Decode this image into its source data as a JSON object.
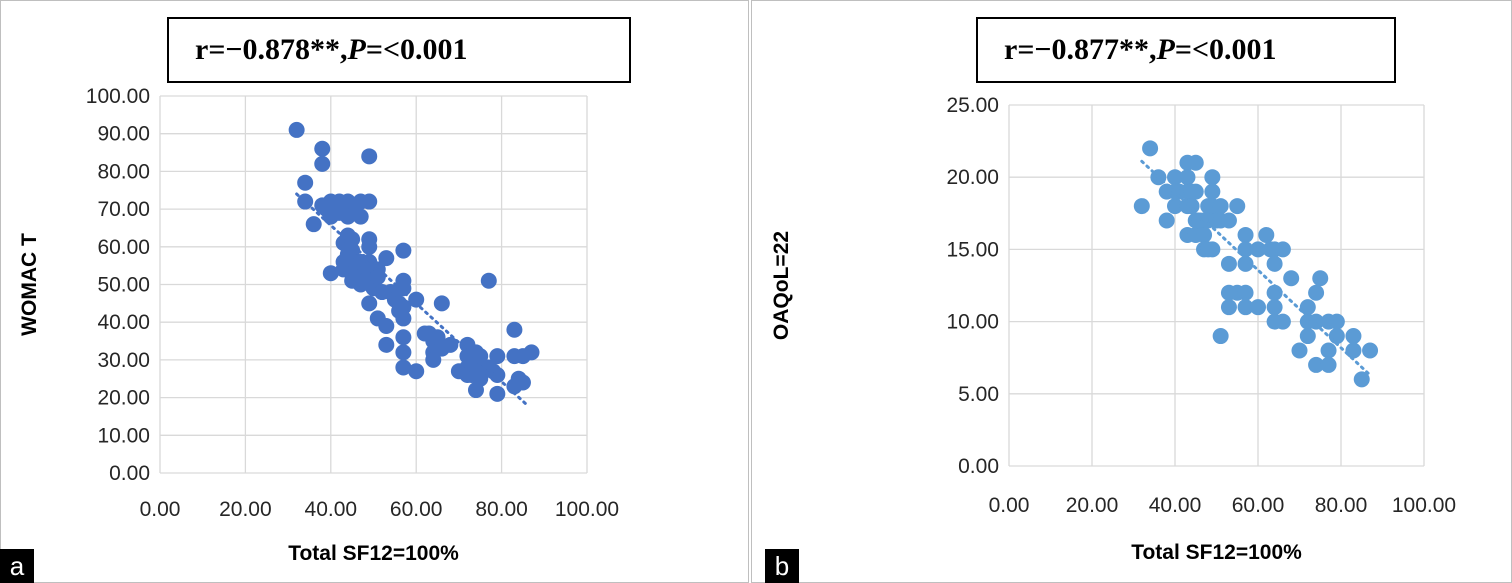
{
  "chart_data": [
    {
      "panel": "a",
      "type": "scatter",
      "annotation": {
        "prefix": "r=−0.878**, ",
        "p_symbol": "P",
        "suffix": "=<0.001"
      },
      "xlabel": "Total SF12=100%",
      "ylabel": "WOMAC T",
      "xlim": [
        0,
        100
      ],
      "ylim": [
        0,
        100
      ],
      "xticks": [
        "0.00",
        "20.00",
        "40.00",
        "60.00",
        "80.00",
        "100.00"
      ],
      "yticks": [
        "0.00",
        "10.00",
        "20.00",
        "30.00",
        "40.00",
        "50.00",
        "60.00",
        "70.00",
        "80.00",
        "90.00",
        "100.00"
      ],
      "grid": true,
      "color": "#4472c4",
      "trendline": {
        "x": [
          32,
          86
        ],
        "y": [
          74,
          18
        ],
        "style": "dotted"
      },
      "points": [
        [
          32,
          91
        ],
        [
          34,
          77
        ],
        [
          34,
          72
        ],
        [
          36,
          66
        ],
        [
          38,
          86
        ],
        [
          38,
          82
        ],
        [
          38,
          71
        ],
        [
          39,
          70
        ],
        [
          40,
          72
        ],
        [
          40,
          68
        ],
        [
          40,
          53
        ],
        [
          42,
          72
        ],
        [
          42,
          69
        ],
        [
          43,
          61
        ],
        [
          43,
          56
        ],
        [
          43,
          54
        ],
        [
          44,
          72
        ],
        [
          44,
          68
        ],
        [
          44,
          63
        ],
        [
          44,
          58
        ],
        [
          44,
          55
        ],
        [
          45,
          62
        ],
        [
          45,
          59
        ],
        [
          45,
          56
        ],
        [
          45,
          53
        ],
        [
          45,
          51
        ],
        [
          46,
          71
        ],
        [
          46,
          55
        ],
        [
          46,
          53
        ],
        [
          47,
          72
        ],
        [
          47,
          68
        ],
        [
          47,
          56
        ],
        [
          47,
          52
        ],
        [
          47,
          50
        ],
        [
          48,
          53
        ],
        [
          48,
          51
        ],
        [
          49,
          84
        ],
        [
          49,
          72
        ],
        [
          49,
          62
        ],
        [
          49,
          60
        ],
        [
          49,
          56
        ],
        [
          49,
          54
        ],
        [
          49,
          45
        ],
        [
          50,
          53
        ],
        [
          50,
          51
        ],
        [
          50,
          49
        ],
        [
          51,
          54
        ],
        [
          51,
          52
        ],
        [
          51,
          41
        ],
        [
          52,
          48
        ],
        [
          53,
          57
        ],
        [
          53,
          39
        ],
        [
          53,
          34
        ],
        [
          54,
          48
        ],
        [
          55,
          46
        ],
        [
          56,
          45
        ],
        [
          56,
          43
        ],
        [
          57,
          59
        ],
        [
          57,
          51
        ],
        [
          57,
          49
        ],
        [
          57,
          44
        ],
        [
          57,
          41
        ],
        [
          57,
          36
        ],
        [
          57,
          32
        ],
        [
          57,
          28
        ],
        [
          60,
          46
        ],
        [
          60,
          27
        ],
        [
          62,
          37
        ],
        [
          63,
          37
        ],
        [
          64,
          35
        ],
        [
          64,
          32
        ],
        [
          64,
          30
        ],
        [
          65,
          36
        ],
        [
          66,
          45
        ],
        [
          66,
          33
        ],
        [
          68,
          34
        ],
        [
          70,
          27
        ],
        [
          72,
          34
        ],
        [
          72,
          31
        ],
        [
          72,
          28
        ],
        [
          72,
          26
        ],
        [
          73,
          26
        ],
        [
          73,
          29
        ],
        [
          74,
          32
        ],
        [
          74,
          22
        ],
        [
          75,
          31
        ],
        [
          75,
          27
        ],
        [
          75,
          25
        ],
        [
          77,
          51
        ],
        [
          77,
          28
        ],
        [
          78,
          27
        ],
        [
          79,
          31
        ],
        [
          79,
          26
        ],
        [
          79,
          21
        ],
        [
          83,
          38
        ],
        [
          83,
          31
        ],
        [
          83,
          23
        ],
        [
          84,
          25
        ],
        [
          85,
          31
        ],
        [
          85,
          24
        ],
        [
          87,
          32
        ]
      ]
    },
    {
      "panel": "b",
      "type": "scatter",
      "annotation": {
        "prefix": "r=−0.877**, ",
        "p_symbol": "P",
        "suffix": "=<0.001"
      },
      "xlabel": "Total SF12=100%",
      "ylabel": "OAQoL=22",
      "xlim": [
        0,
        100
      ],
      "ylim": [
        0,
        25
      ],
      "xticks": [
        "0.00",
        "20.00",
        "40.00",
        "60.00",
        "80.00",
        "100.00"
      ],
      "yticks": [
        "0.00",
        "5.00",
        "10.00",
        "15.00",
        "20.00",
        "25.00"
      ],
      "grid": true,
      "color": "#5b9bd5",
      "trendline": {
        "x": [
          32,
          87
        ],
        "y": [
          21.1,
          6.3
        ],
        "style": "dotted"
      },
      "points": [
        [
          32,
          18
        ],
        [
          34,
          22
        ],
        [
          36,
          20
        ],
        [
          38,
          19
        ],
        [
          38,
          17
        ],
        [
          40,
          20
        ],
        [
          40,
          19
        ],
        [
          40,
          18
        ],
        [
          41,
          19
        ],
        [
          43,
          21
        ],
        [
          43,
          20
        ],
        [
          43,
          19
        ],
        [
          43,
          18
        ],
        [
          43,
          16
        ],
        [
          44,
          19
        ],
        [
          44,
          18
        ],
        [
          45,
          21
        ],
        [
          45,
          19
        ],
        [
          45,
          17
        ],
        [
          45,
          16
        ],
        [
          46,
          17
        ],
        [
          47,
          17
        ],
        [
          47,
          16
        ],
        [
          47,
          15
        ],
        [
          48,
          18
        ],
        [
          48,
          17
        ],
        [
          48,
          15
        ],
        [
          49,
          20
        ],
        [
          49,
          19
        ],
        [
          49,
          18
        ],
        [
          49,
          15
        ],
        [
          50,
          17
        ],
        [
          51,
          18
        ],
        [
          51,
          17
        ],
        [
          51,
          9
        ],
        [
          53,
          17
        ],
        [
          53,
          14
        ],
        [
          53,
          12
        ],
        [
          53,
          11
        ],
        [
          55,
          18
        ],
        [
          55,
          12
        ],
        [
          57,
          16
        ],
        [
          57,
          15
        ],
        [
          57,
          14
        ],
        [
          57,
          12
        ],
        [
          57,
          11
        ],
        [
          60,
          15
        ],
        [
          60,
          11
        ],
        [
          62,
          16
        ],
        [
          63,
          15
        ],
        [
          64,
          15
        ],
        [
          64,
          14
        ],
        [
          64,
          12
        ],
        [
          64,
          11
        ],
        [
          64,
          10
        ],
        [
          66,
          15
        ],
        [
          66,
          10
        ],
        [
          68,
          13
        ],
        [
          70,
          8
        ],
        [
          72,
          11
        ],
        [
          72,
          10
        ],
        [
          72,
          9
        ],
        [
          74,
          12
        ],
        [
          74,
          10
        ],
        [
          74,
          7
        ],
        [
          75,
          13
        ],
        [
          77,
          10
        ],
        [
          77,
          8
        ],
        [
          77,
          7
        ],
        [
          79,
          10
        ],
        [
          79,
          9
        ],
        [
          83,
          9
        ],
        [
          83,
          8
        ],
        [
          85,
          6
        ],
        [
          87,
          8
        ]
      ]
    }
  ],
  "panels": {
    "a": {
      "label": "a"
    },
    "b": {
      "label": "b"
    }
  }
}
